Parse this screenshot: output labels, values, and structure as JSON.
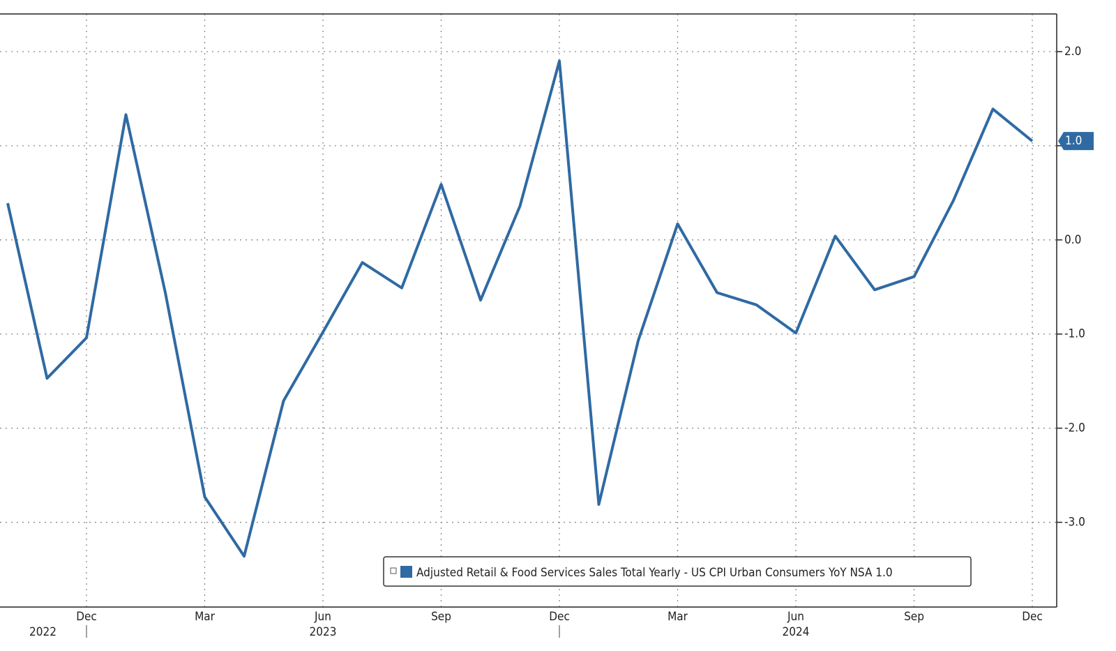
{
  "chart_data": {
    "type": "line",
    "categories": [
      null,
      null,
      "Dec",
      null,
      null,
      "Mar",
      null,
      null,
      "Jun",
      null,
      null,
      "Sep",
      null,
      null,
      "Dec",
      null,
      null,
      "Mar",
      null,
      null,
      "Jun",
      null,
      null,
      "Sep",
      null,
      null,
      "Dec"
    ],
    "year_labels": [
      "2022",
      "2023",
      "2024"
    ],
    "series": [
      {
        "name": "Adjusted Retail & Food Services Sales Total Yearly - US CPI Urban Consumers YoY NSA",
        "color": "#2f6aa3",
        "values": [
          0.39,
          -1.47,
          -1.04,
          1.33,
          -0.56,
          -2.73,
          -3.36,
          -1.71,
          -0.98,
          -0.24,
          -0.51,
          0.59,
          -0.64,
          0.36,
          1.9,
          -2.81,
          -1.07,
          0.17,
          -0.56,
          -0.69,
          -0.99,
          0.04,
          -0.53,
          -0.39,
          0.42,
          1.39,
          1.05
        ],
        "value_labels": [
          null,
          null,
          null,
          null,
          null,
          null,
          null,
          null,
          null,
          null,
          null,
          null,
          null,
          null,
          null,
          null,
          null,
          null,
          null,
          null,
          null,
          null,
          null,
          null,
          null,
          null,
          "1.0"
        ]
      }
    ],
    "ylim": [
      -3.9,
      2.4
    ],
    "yticks": [
      {
        "value": 2,
        "label": "2.0"
      },
      {
        "value": 1,
        "label": "1.0"
      },
      {
        "value": 0,
        "label": "0.0"
      },
      {
        "value": -1,
        "label": "-1.0"
      },
      {
        "value": -2,
        "label": "-2.0"
      },
      {
        "value": -3,
        "label": "-3.0"
      }
    ],
    "grid": true
  }
}
